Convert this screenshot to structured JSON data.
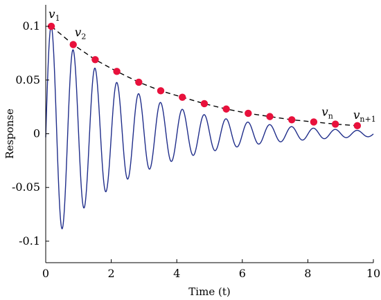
{
  "chart_data": {
    "type": "line",
    "title": "",
    "xlabel": "Time (t)",
    "ylabel": "Response",
    "xlim": [
      0,
      10
    ],
    "ylim": [
      -0.12,
      0.12
    ],
    "xticks": [
      0,
      2,
      4,
      6,
      8,
      10
    ],
    "xtick_labels": [
      "0",
      "2",
      "4",
      "6",
      "8",
      "10"
    ],
    "yticks": [
      -0.1,
      -0.05,
      0,
      0.05,
      0.1
    ],
    "ytick_labels": [
      "-0.1",
      "-0.05",
      "0",
      "0.05",
      "0.1"
    ],
    "grid": false,
    "signal": {
      "kind": "damped-cosine",
      "amplitude": 0.1,
      "decay_rate": 0.37,
      "period": 0.667,
      "peak_offset": 0.17,
      "color": "#1f2d8a"
    },
    "peaks": {
      "x": [
        0.17,
        0.84,
        1.51,
        2.17,
        2.84,
        3.51,
        4.17,
        4.84,
        5.51,
        6.18,
        6.84,
        7.51,
        8.18,
        8.84,
        9.51
      ],
      "y": [
        0.1,
        0.083,
        0.069,
        0.058,
        0.048,
        0.04,
        0.034,
        0.028,
        0.023,
        0.019,
        0.016,
        0.013,
        0.011,
        0.009,
        0.0075
      ],
      "color": "#e8113c"
    },
    "envelope": {
      "style": "dashed",
      "color": "#000000"
    },
    "annotations": [
      {
        "symbol": "v",
        "sub": "1",
        "x": 0.17,
        "y": 0.1
      },
      {
        "symbol": "v",
        "sub": "2",
        "x": 0.84,
        "y": 0.083
      },
      {
        "symbol": "v",
        "sub": "n",
        "x": 8.84,
        "y": 0.009
      },
      {
        "symbol": "v",
        "sub": "n+1",
        "x": 9.51,
        "y": 0.0075
      }
    ]
  }
}
